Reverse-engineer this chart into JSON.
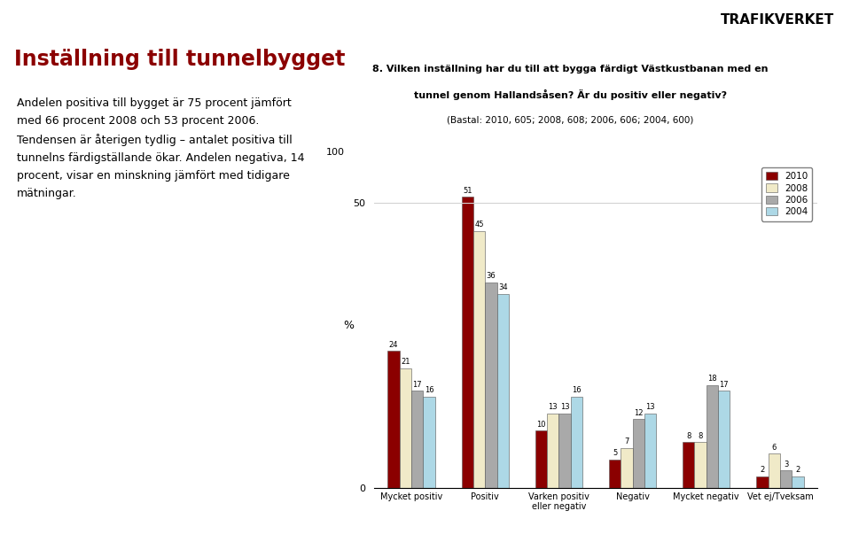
{
  "categories": [
    "Mycket positiv",
    "Positiv",
    "Varken positiv\neller negativ",
    "Negativ",
    "Mycket negativ",
    "Vet ej/Tveksam"
  ],
  "years": [
    "2010",
    "2008",
    "2006",
    "2004"
  ],
  "colors": [
    "#8B0000",
    "#F0EAC8",
    "#A9A9A9",
    "#ADD8E6"
  ],
  "values": {
    "Mycket positiv": [
      24,
      21,
      17,
      16
    ],
    "Positiv": [
      51,
      45,
      36,
      34
    ],
    "Varken positiv\neller negativ": [
      10,
      13,
      13,
      16
    ],
    "Negativ": [
      5,
      7,
      12,
      13
    ],
    "Mycket negativ": [
      8,
      8,
      18,
      17
    ],
    "Vet ej/Tveksam": [
      2,
      6,
      3,
      2
    ]
  },
  "background_color": "#FFFFFF",
  "header_color": "#8B0000",
  "title_main": "Inställning till tunnelbygget",
  "title_color": "#8B0000",
  "question_line1": "8. Vilken inställning har du till att bygga färdigt Västkustbanan med en",
  "question_line2": "tunnel genom Hallandsåsen? Är du positiv eller negativ?",
  "question_line3": "(Bastal: 2010, 605; 2008, 608; 2006, 606; 2004, 600)",
  "left_text": "Andelen positiva till bygget är 75 procent jämfört\nmed 66 procent 2008 och 53 procent 2006.\nTendensen är återigen tydlig – antalet positiva till\ntunnelns färdigställande ökar. Andelen negativa, 14\nprocent, visar en minskning jämfört med tidigare\nmätningar.",
  "ylim": [
    0,
    57
  ],
  "yticks": [
    0,
    50
  ],
  "ytick_labels": [
    "0",
    "50"
  ],
  "percent_label": "%",
  "hundred_label": "100"
}
